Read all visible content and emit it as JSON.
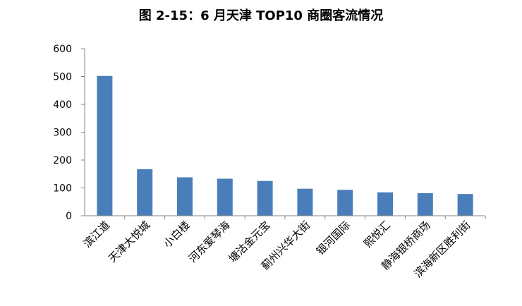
{
  "title": "图 2-15：6 月天津 TOP10 商圈客流情况",
  "chart_data": {
    "type": "bar",
    "title": "图 2-15：6 月天津 TOP10 商圈客流情况",
    "xlabel": "",
    "ylabel": "",
    "ylim": [
      0,
      600
    ],
    "yticks": [
      0,
      100,
      200,
      300,
      400,
      500,
      600
    ],
    "grid": false,
    "legend": "none",
    "bar_color": "#4a7ebb",
    "categories": [
      "滨江道",
      "天津大悦城",
      "小白楼",
      "河东爱琴海",
      "塘沽金元宝",
      "蓟州兴华大街",
      "银河国际",
      "熙悦汇",
      "静海银桥商场",
      "滨海新区胜利街"
    ],
    "values": [
      502,
      167,
      138,
      133,
      125,
      97,
      93,
      84,
      81,
      78
    ]
  }
}
